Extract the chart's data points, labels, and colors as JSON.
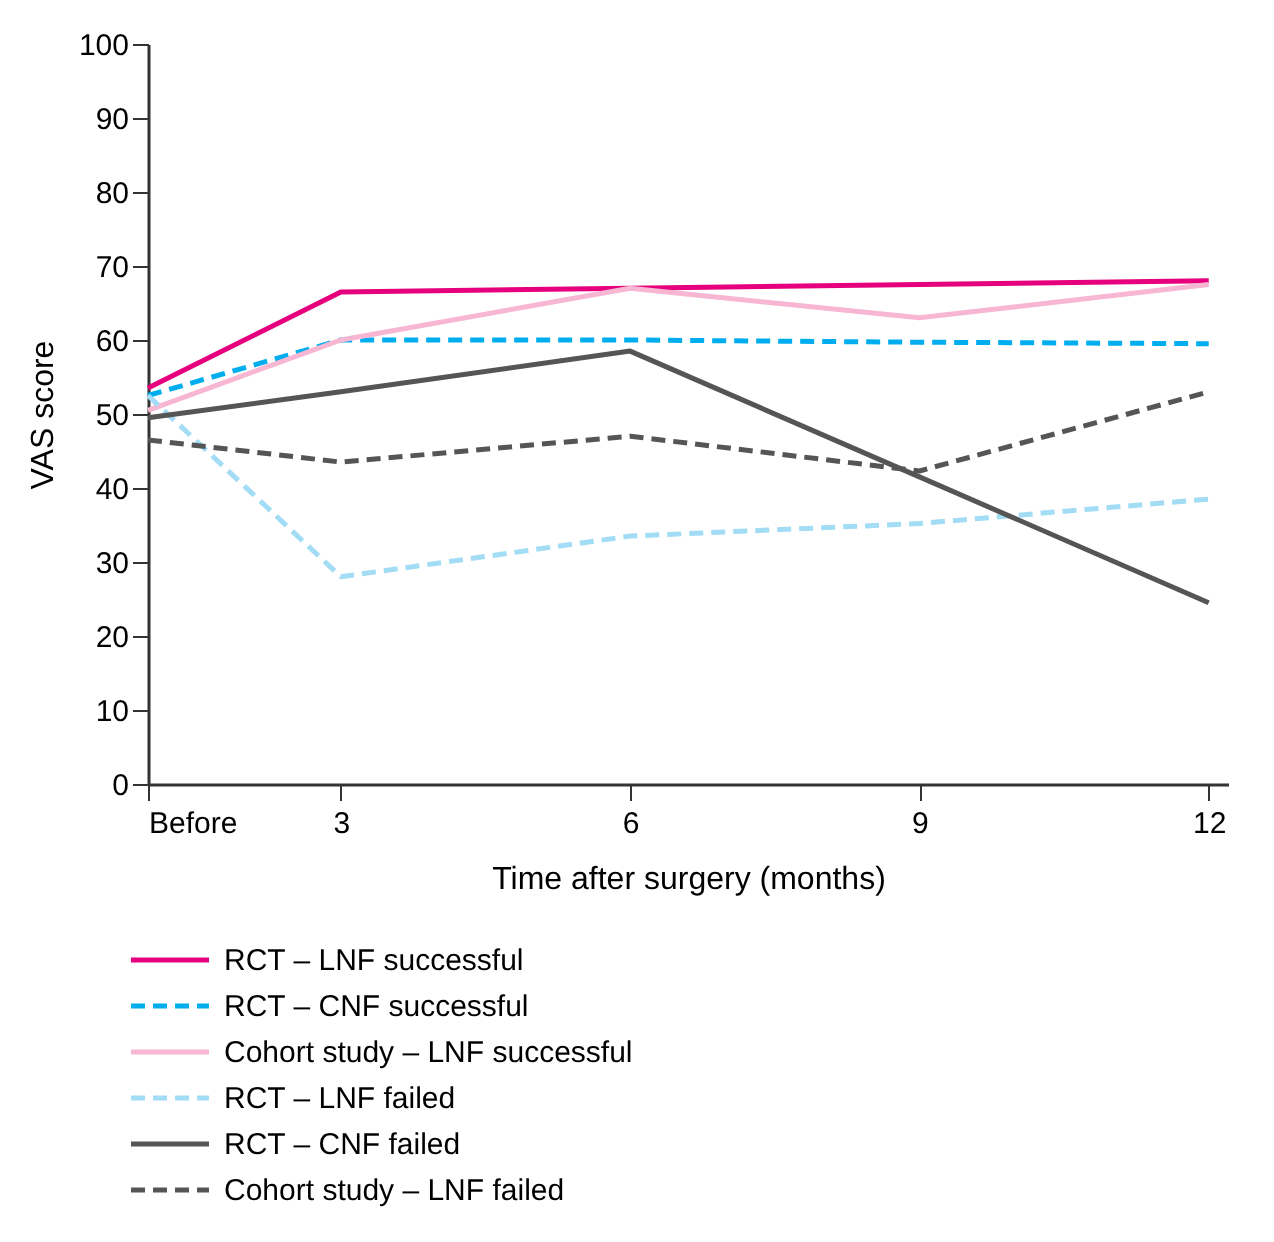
{
  "chart_data": {
    "type": "line",
    "xlabel": "Time after surgery (months)",
    "ylabel": "VAS score",
    "x": [
      1,
      3,
      6,
      9,
      12
    ],
    "xlim": [
      1,
      12.2
    ],
    "xticks": [
      {
        "value": 1,
        "label": "Before"
      },
      3,
      6,
      9,
      12
    ],
    "ylim": [
      0,
      100
    ],
    "yticks": [
      0,
      10,
      20,
      30,
      40,
      50,
      60,
      70,
      80,
      90,
      100
    ],
    "grid": false,
    "legend": "bottom",
    "marker": "none",
    "series": [
      {
        "name": "RCT – LNF successful",
        "color": "#e6007e",
        "line_style": "solid",
        "values": [
          53.5,
          66.5,
          67,
          67.5,
          68
        ]
      },
      {
        "name": "RCT – CNF successful",
        "color": "#00aeef",
        "line_style": "dashed",
        "values": [
          52.5,
          60,
          60,
          59.7,
          59.5
        ]
      },
      {
        "name": "Cohort study – LNF successful",
        "color": "#f7b6d2",
        "line_style": "solid",
        "values": [
          50.5,
          60,
          67,
          63,
          67.5
        ]
      },
      {
        "name": "RCT – LNF failed",
        "color": "#a3dcf5",
        "line_style": "dashed",
        "values": [
          52.5,
          28,
          33.5,
          35.2,
          38.5
        ]
      },
      {
        "name": "RCT – CNF failed",
        "color": "#555555",
        "line_style": "solid",
        "values": [
          49.5,
          53,
          58.5,
          41.5,
          24.5
        ]
      },
      {
        "name": "Cohort study – LNF failed",
        "color": "#555555",
        "line_style": "dashed",
        "values": [
          46.5,
          43.5,
          47,
          42.3,
          53
        ]
      }
    ]
  }
}
